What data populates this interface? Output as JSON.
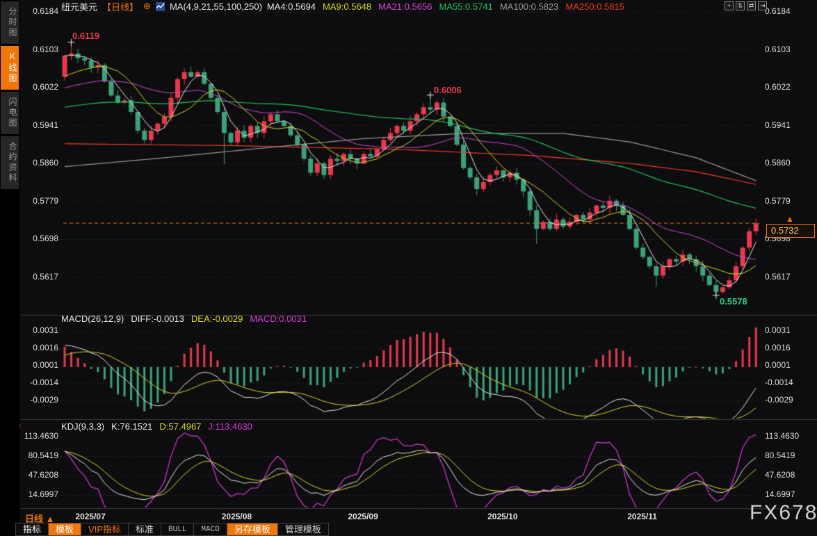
{
  "header": {
    "symbol": "纽元美元",
    "period": "【日线】",
    "add_icon": "⊕",
    "ma_label": "MA(4,9,21,55,100,250)",
    "ma_values": [
      {
        "label": "MA4:0.5694",
        "color": "#e8e8e8"
      },
      {
        "label": "MA9:0.5648",
        "color": "#d8d822"
      },
      {
        "label": "MA21:0.5656",
        "color": "#d24ad2"
      },
      {
        "label": "MA55:0.5741",
        "color": "#1ec45e"
      },
      {
        "label": "MA100:0.5823",
        "color": "#9a9a9a"
      },
      {
        "label": "MA250:0.5815",
        "color": "#f03b28"
      }
    ],
    "window_icons": [
      {
        "name": "crosshair-icon",
        "glyph": "+"
      },
      {
        "name": "compress-vertical-icon",
        "glyph": "⇅"
      },
      {
        "name": "compress-horizontal-icon",
        "glyph": "⇄"
      },
      {
        "name": "goto-latest-icon",
        "glyph": "⇥"
      }
    ]
  },
  "sidebar": {
    "tabs": [
      {
        "label": "分时图",
        "active": false
      },
      {
        "label": "K线图",
        "active": true
      },
      {
        "label": "闪电图",
        "active": false
      },
      {
        "label": "合约资料",
        "active": false
      }
    ]
  },
  "annotations": {
    "high1": "0.6119",
    "high2": "0.6006",
    "low": "0.5578"
  },
  "price_tag": {
    "value": "0.5732",
    "arrow": "▲"
  },
  "macd_header": {
    "title": "MACD(26,12,9)",
    "diff": "DIFF:-0.0013",
    "dea": "DEA:-0.0029",
    "macd": "MACD:0.0031"
  },
  "kdj_header": {
    "title": "KDJ(9,3,3)",
    "k": "K:76.1521",
    "d": "D:57.4967",
    "j": "J:113.4630"
  },
  "xaxis": {
    "period_label": "日线 ▲",
    "ticks": [
      {
        "label": "2025/07",
        "index": 2
      },
      {
        "label": "2025/08",
        "index": 24
      },
      {
        "label": "2025/09",
        "index": 43
      },
      {
        "label": "2025/10",
        "index": 64
      },
      {
        "label": "2025/11",
        "index": 85
      }
    ]
  },
  "toolbar": {
    "items": [
      {
        "label": "指标",
        "variant": "white"
      },
      {
        "label": "模板",
        "variant": "orange-bg"
      },
      {
        "label": "VIP指标",
        "variant": "orange-text"
      },
      {
        "label": "标准",
        "variant": "plain"
      },
      {
        "label": "BULL",
        "variant": "grey-mono"
      },
      {
        "label": "MACD",
        "variant": "grey-mono"
      },
      {
        "label": "另存模板",
        "variant": "orange-bg"
      },
      {
        "label": "管理模板",
        "variant": "plain"
      }
    ]
  },
  "watermark": "FX678",
  "chart_data": {
    "type": "candlestick",
    "title": "纽元美元 日线 (NZD/USD daily)",
    "current_price": 0.5732,
    "axis_main": [
      "0.6184",
      "0.6103",
      "0.6022",
      "0.5941",
      "0.5860",
      "0.5779",
      "0.5698",
      "0.5617"
    ],
    "axis_macd": [
      "0.0031",
      "0.0016",
      "0.0001",
      "-0.0014",
      "-0.0029"
    ],
    "axis_kdj": [
      "113.4630",
      "80.5419",
      "47.6208",
      "14.6997"
    ],
    "first_open": 0.6045,
    "closes": [
      0.609,
      0.6095,
      0.6085,
      0.608,
      0.6065,
      0.607,
      0.6035,
      0.6005,
      0.599,
      0.5995,
      0.597,
      0.593,
      0.591,
      0.593,
      0.5945,
      0.596,
      0.6,
      0.604,
      0.6055,
      0.6045,
      0.6055,
      0.603,
      0.6,
      0.597,
      0.5925,
      0.5905,
      0.593,
      0.5915,
      0.594,
      0.5925,
      0.595,
      0.5965,
      0.595,
      0.594,
      0.592,
      0.59,
      0.587,
      0.584,
      0.586,
      0.5835,
      0.587,
      0.5865,
      0.588,
      0.587,
      0.586,
      0.588,
      0.5875,
      0.589,
      0.591,
      0.5925,
      0.594,
      0.593,
      0.595,
      0.5965,
      0.598,
      0.5975,
      0.599,
      0.596,
      0.594,
      0.59,
      0.585,
      0.583,
      0.5805,
      0.582,
      0.5835,
      0.5845,
      0.583,
      0.584,
      0.5825,
      0.58,
      0.576,
      0.572,
      0.5735,
      0.572,
      0.574,
      0.5725,
      0.5735,
      0.575,
      0.574,
      0.5755,
      0.577,
      0.5765,
      0.578,
      0.577,
      0.575,
      0.572,
      0.568,
      0.566,
      0.564,
      0.562,
      0.564,
      0.5655,
      0.565,
      0.5665,
      0.5655,
      0.564,
      0.562,
      0.56,
      0.5585,
      0.5595,
      0.561,
      0.564,
      0.568,
      0.5715,
      0.5732
    ],
    "wick_overrides": {
      "1": {
        "high": 0.6119
      },
      "24": {
        "low": 0.5858
      },
      "55": {
        "high": 0.6006
      },
      "62": {
        "low": 0.5792
      },
      "71": {
        "low": 0.5688
      },
      "89": {
        "low": 0.5596
      },
      "98": {
        "low": 0.5578
      },
      "99": {
        "low": 0.558
      },
      "104": {
        "high": 0.5742
      }
    },
    "markers": [
      {
        "index": 1,
        "price": 0.6119,
        "side": "high"
      },
      {
        "index": 55,
        "price": 0.6006,
        "side": "high"
      },
      {
        "index": 98,
        "price": 0.5578,
        "side": "low"
      }
    ],
    "ma_seeds": {
      "9": 0.604,
      "21": 0.6018,
      "55": 0.5978
    },
    "ma100_anchors": [
      [
        0,
        0.5853
      ],
      [
        15,
        0.5872
      ],
      [
        30,
        0.5893
      ],
      [
        45,
        0.5913
      ],
      [
        60,
        0.5924
      ],
      [
        75,
        0.5924
      ],
      [
        85,
        0.5906
      ],
      [
        95,
        0.5872
      ],
      [
        104,
        0.5823
      ]
    ],
    "ma250_anchors": [
      [
        0,
        0.5902
      ],
      [
        25,
        0.5898
      ],
      [
        50,
        0.589
      ],
      [
        70,
        0.5877
      ],
      [
        85,
        0.586
      ],
      [
        95,
        0.5842
      ],
      [
        104,
        0.5815
      ]
    ],
    "macd_seeds": {
      "ema12": 0.6085,
      "ema26": 0.6065,
      "dea": 0.0008
    },
    "kdj_seeds": {
      "k": 85,
      "d": 88
    },
    "colors": {
      "up": "#e8394e",
      "down": "#3da278",
      "ma4": "#e8e8e8",
      "ma9": "#d8d822",
      "ma21": "#d24ad2",
      "ma55": "#1ec45e",
      "ma100": "#9a9a9a",
      "ma250": "#f03b28",
      "diff": "#e8e8e8",
      "dea": "#d8d822",
      "k": "#e8e8e8",
      "d": "#d8d822",
      "j": "#d838d8",
      "grid": "#3a3a3c",
      "separator": "#3c3c3e",
      "price_line": "#d97a16"
    }
  }
}
